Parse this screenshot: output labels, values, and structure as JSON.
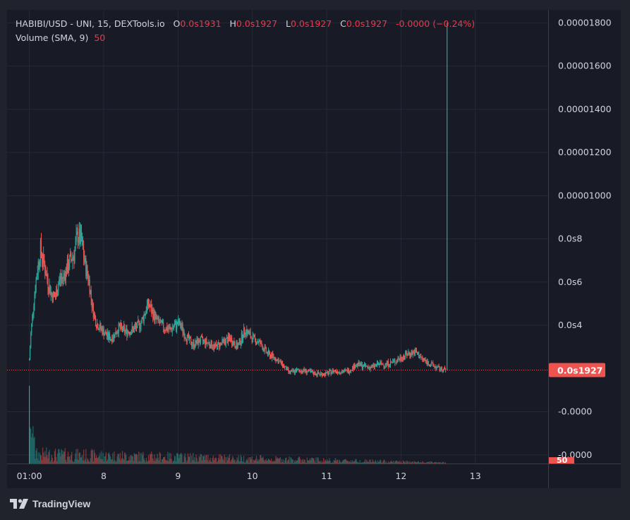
{
  "legend": {
    "symbol": "HABIBI/USD - UNI, 15, DEXTools.io",
    "open_key": "O",
    "open": "0.0s1931",
    "high_key": "H",
    "high": "0.0s1927",
    "low_key": "L",
    "low": "0.0s1927",
    "close_key": "C",
    "close": "0.0s1927",
    "change": "-0.0000 (−0.24%)",
    "volume_label": "Volume (SMA, 9)",
    "volume_value": "50"
  },
  "footer": {
    "brand": "TradingView"
  },
  "colors": {
    "up": "#26a69a",
    "down": "#ef5350",
    "bg": "#181a25",
    "grid": "#262936",
    "text": "#d1d4dc"
  },
  "chart_data": {
    "type": "candlestick",
    "y_tick_labels": [
      "0.00001800",
      "0.00001600",
      "0.00001400",
      "0.00001200",
      "0.00001000",
      "0.0s8",
      "0.0s6",
      "0.0s4",
      "-0.0000",
      "-0.0000"
    ],
    "y_tick_values": [
      1.8e-05,
      1.6e-05,
      1.4e-05,
      1.2e-05,
      1e-05,
      8e-06,
      6e-06,
      4e-06,
      0,
      -2e-06
    ],
    "ylim": [
      -2.4e-06,
      1.86e-05
    ],
    "x_tick_labels": [
      "01:00",
      "8",
      "9",
      "10",
      "11",
      "12",
      "13"
    ],
    "x_tick_values": [
      0,
      1,
      2,
      3,
      4,
      5,
      6
    ],
    "xlim": [
      -0.3,
      6.98
    ],
    "last_price_label": "0.0s1927",
    "last_price_value": 1.927e-06,
    "volume_last_label": "50",
    "price_curve_x": [
      0.0,
      0.02,
      0.05,
      0.1,
      0.15,
      0.2,
      0.25,
      0.3,
      0.35,
      0.4,
      0.45,
      0.5,
      0.55,
      0.6,
      0.65,
      0.7,
      0.75,
      0.8,
      0.85,
      0.9,
      0.95,
      1.0,
      1.05,
      1.1,
      1.15,
      1.2,
      1.3,
      1.4,
      1.5,
      1.6,
      1.7,
      1.8,
      1.9,
      2.0,
      2.05,
      2.1,
      2.2,
      2.3,
      2.4,
      2.5,
      2.6,
      2.7,
      2.8,
      2.9,
      3.0,
      3.1,
      3.2,
      3.3,
      3.4,
      3.5,
      3.6,
      3.7,
      3.8,
      3.9,
      4.0,
      4.1,
      4.2,
      4.3,
      4.4,
      4.5,
      4.6,
      4.7,
      4.8,
      4.9,
      5.0,
      5.1,
      5.2,
      5.3,
      5.4,
      5.5,
      5.6
    ],
    "price_curve_y": [
      2.4e-06,
      3.6e-06,
      4.8e-06,
      6.4e-06,
      7.5e-06,
      6.8e-06,
      6e-06,
      5.4e-06,
      5.3e-06,
      6.1e-06,
      6.2e-06,
      6.6e-06,
      7e-06,
      7.3e-06,
      8.2e-06,
      7.9e-06,
      6.8e-06,
      6.1e-06,
      4.8e-06,
      4.1e-06,
      3.9e-06,
      3.7e-06,
      3.5e-06,
      3.4e-06,
      3.6e-06,
      3.9e-06,
      3.7e-06,
      3.8e-06,
      4.1e-06,
      5e-06,
      4.3e-06,
      3.9e-06,
      3.8e-06,
      4.1e-06,
      3.9e-06,
      3.5e-06,
      3.1e-06,
      3.3e-06,
      3.2e-06,
      3e-06,
      3.2e-06,
      3.4e-06,
      3e-06,
      3.8e-06,
      3.4e-06,
      3.2e-06,
      2.7e-06,
      2.5e-06,
      2.2e-06,
      1.8e-06,
      1.9e-06,
      1.9e-06,
      1.8e-06,
      1.75e-06,
      1.75e-06,
      1.9e-06,
      1.85e-06,
      1.9e-06,
      2.2e-06,
      2.1e-06,
      2.05e-06,
      2.2e-06,
      2.2e-06,
      2.3e-06,
      2.5e-06,
      2.7e-06,
      2.75e-06,
      2.4e-06,
      2.2e-06,
      2e-06,
      1.92e-06
    ],
    "final_spike": {
      "x": 5.62,
      "high": 1.8e-05
    }
  }
}
